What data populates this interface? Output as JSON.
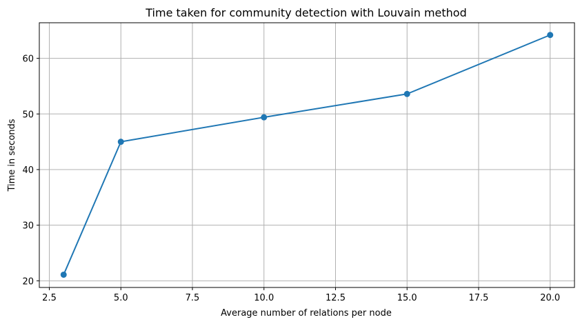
{
  "chart_data": {
    "type": "line",
    "title": "Time taken for community detection with Louvain method",
    "xlabel": "Average number of relations per node",
    "ylabel": "Time in seconds",
    "x": [
      3,
      5,
      10,
      15,
      20
    ],
    "series": [
      {
        "values": [
          21.1,
          45.0,
          49.4,
          53.6,
          64.2
        ],
        "color": "#1f77b4",
        "marker": "circle"
      }
    ],
    "xlim": [
      2.15,
      20.85
    ],
    "ylim": [
      18.8,
      66.4
    ],
    "xticks": [
      2.5,
      5.0,
      7.5,
      10.0,
      12.5,
      15.0,
      17.5,
      20.0
    ],
    "xtick_labels": [
      "2.5",
      "5.0",
      "7.5",
      "10.0",
      "12.5",
      "15.0",
      "17.5",
      "20.0"
    ],
    "yticks": [
      20,
      30,
      40,
      50,
      60
    ],
    "ytick_labels": [
      "20",
      "30",
      "40",
      "50",
      "60"
    ],
    "grid": true,
    "grid_color": "#b0b0b0",
    "legend": false
  }
}
